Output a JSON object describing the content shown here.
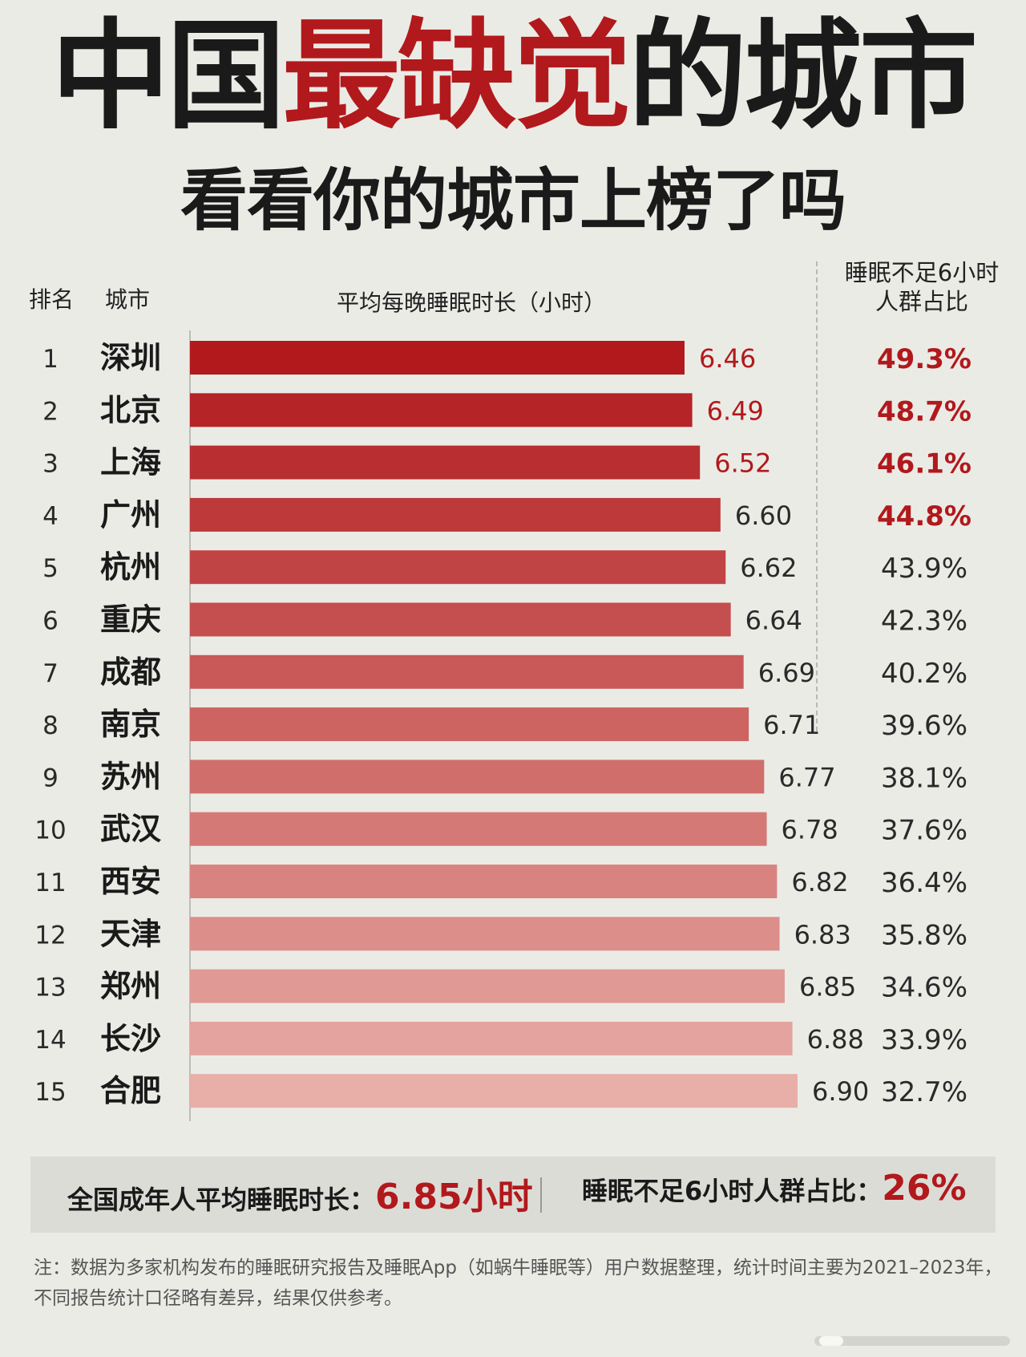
{
  "header": {
    "title_part1": "中国",
    "title_accent": "最缺觉",
    "title_part2": "的城市",
    "subtitle": "看看你的城市上榜了吗"
  },
  "table_headers": {
    "rank": "排名",
    "city": "城市",
    "bar": "平均每晚睡眠时长（小时）",
    "share_line1": "睡眠不足6小时",
    "share_line2": "人群占比"
  },
  "chart_data": {
    "type": "bar",
    "orientation": "horizontal",
    "categories": [
      "深圳",
      "北京",
      "上海",
      "广州",
      "杭州",
      "重庆",
      "成都",
      "南京",
      "苏州",
      "武汉",
      "西安",
      "天津",
      "郑州",
      "长沙",
      "合肥"
    ],
    "ranks": [
      "1",
      "2",
      "3",
      "4",
      "5",
      "6",
      "7",
      "8",
      "9",
      "10",
      "11",
      "12",
      "13",
      "14",
      "15"
    ],
    "series": [
      {
        "values": [
          6.46,
          6.49,
          6.52,
          6.6,
          6.62,
          6.64,
          6.69,
          6.71,
          6.77,
          6.78,
          6.82,
          6.83,
          6.85,
          6.88,
          6.9
        ],
        "labels": [
          "6.46",
          "6.49",
          "6.52",
          "6.60",
          "6.62",
          "6.64",
          "6.69",
          "6.71",
          "6.77",
          "6.78",
          "6.82",
          "6.83",
          "6.85",
          "6.88",
          "6.90"
        ]
      },
      {
        "values": [
          49.3,
          48.7,
          46.1,
          44.8,
          43.9,
          42.3,
          40.2,
          39.6,
          38.1,
          37.6,
          36.4,
          35.8,
          34.6,
          33.9,
          32.7
        ],
        "labels": [
          "49.3%",
          "48.7%",
          "46.1%",
          "44.8%",
          "43.9%",
          "42.3%",
          "40.2%",
          "39.6%",
          "38.1%",
          "37.6%",
          "36.4%",
          "35.8%",
          "34.6%",
          "33.9%",
          "32.7%"
        ]
      }
    ],
    "xlabel": "平均每晚睡眠时长（小时）",
    "xlim": [
      0,
      6.9
    ],
    "grid": false,
    "bar_color_start": "#b1191c",
    "bar_color_end": "#e8aea8",
    "highlight_color": "#b1191c",
    "value_label_highlight_count": 3,
    "share_label_highlight_count": 4
  },
  "summary": {
    "avg_label": "全国成年人平均睡眠时长：",
    "avg_value": "6.85小时",
    "share_label": "睡眠不足6小时人群占比：",
    "share_value": "26%"
  },
  "note": {
    "line1": "注：数据为多家机构发布的睡眠研究报告及睡眠App（如蜗牛睡眠等）用户数据整理，统计时间主要为2021–2023年，",
    "line2": "不同报告统计口径略有差异，结果仅供参考。"
  }
}
